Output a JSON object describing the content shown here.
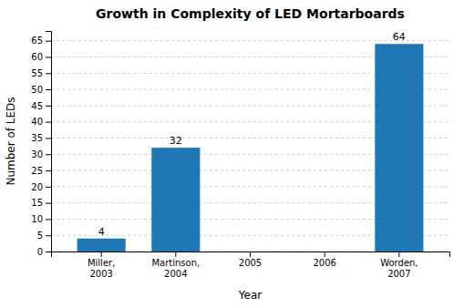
{
  "chart_data": {
    "type": "bar",
    "title": "Growth in Complexity of LED Mortarboards",
    "x_label": "Year",
    "y_label": "Number of LEDs",
    "categories": [
      "Miller,\n2003",
      "Martinson,\n2004",
      "2005",
      "2006",
      "Worden,\n2007"
    ],
    "values": [
      4,
      32,
      0,
      0,
      64
    ],
    "ylim": [
      0,
      68
    ],
    "yticks": [
      0,
      5,
      10,
      15,
      20,
      25,
      30,
      35,
      40,
      45,
      50,
      55,
      60,
      65
    ],
    "grid": true,
    "data_labels": true
  }
}
